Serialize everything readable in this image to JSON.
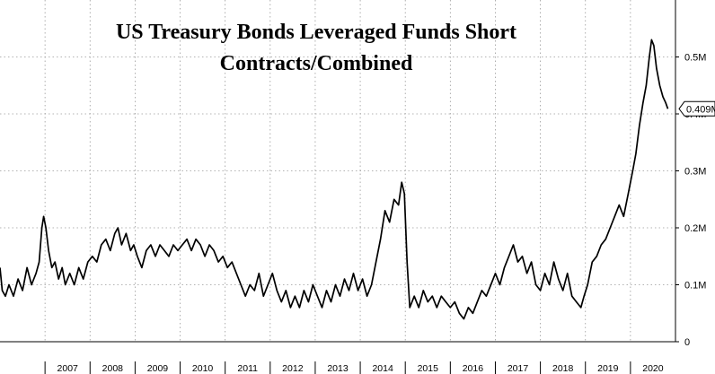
{
  "chart_data": {
    "type": "line",
    "title_lines": [
      "US Treasury Bonds Leveraged Funds Short",
      "Contracts/Combined"
    ],
    "xlabel": "",
    "ylabel": "",
    "x_ticks": [
      "2007",
      "2008",
      "2009",
      "2010",
      "2011",
      "2012",
      "2013",
      "2014",
      "2015",
      "2016",
      "2017",
      "2018",
      "2019",
      "2020"
    ],
    "y_ticks": [
      "0",
      "0.1M",
      "0.2M",
      "0.3M",
      "0.4M",
      "0.5M"
    ],
    "ylim": [
      0,
      0.6
    ],
    "xlim": [
      2006.0,
      2021.0
    ],
    "grid": true,
    "last_value_label": "0.409M",
    "series": [
      {
        "values": [
          [
            2006.0,
            0.13
          ],
          [
            2006.05,
            0.09
          ],
          [
            2006.12,
            0.08
          ],
          [
            2006.2,
            0.1
          ],
          [
            2006.3,
            0.08
          ],
          [
            2006.4,
            0.11
          ],
          [
            2006.5,
            0.09
          ],
          [
            2006.6,
            0.13
          ],
          [
            2006.7,
            0.1
          ],
          [
            2006.8,
            0.12
          ],
          [
            2006.87,
            0.14
          ],
          [
            2006.93,
            0.2
          ],
          [
            2006.97,
            0.22
          ],
          [
            2007.02,
            0.2
          ],
          [
            2007.08,
            0.16
          ],
          [
            2007.15,
            0.13
          ],
          [
            2007.22,
            0.14
          ],
          [
            2007.3,
            0.11
          ],
          [
            2007.38,
            0.13
          ],
          [
            2007.45,
            0.1
          ],
          [
            2007.55,
            0.12
          ],
          [
            2007.65,
            0.1
          ],
          [
            2007.75,
            0.13
          ],
          [
            2007.85,
            0.11
          ],
          [
            2007.95,
            0.14
          ],
          [
            2008.05,
            0.15
          ],
          [
            2008.15,
            0.14
          ],
          [
            2008.25,
            0.17
          ],
          [
            2008.35,
            0.18
          ],
          [
            2008.45,
            0.16
          ],
          [
            2008.55,
            0.19
          ],
          [
            2008.62,
            0.2
          ],
          [
            2008.7,
            0.17
          ],
          [
            2008.8,
            0.19
          ],
          [
            2008.9,
            0.16
          ],
          [
            2008.97,
            0.17
          ],
          [
            2009.05,
            0.15
          ],
          [
            2009.15,
            0.13
          ],
          [
            2009.25,
            0.16
          ],
          [
            2009.35,
            0.17
          ],
          [
            2009.45,
            0.15
          ],
          [
            2009.55,
            0.17
          ],
          [
            2009.65,
            0.16
          ],
          [
            2009.75,
            0.15
          ],
          [
            2009.85,
            0.17
          ],
          [
            2009.95,
            0.16
          ],
          [
            2010.05,
            0.17
          ],
          [
            2010.15,
            0.18
          ],
          [
            2010.25,
            0.16
          ],
          [
            2010.35,
            0.18
          ],
          [
            2010.45,
            0.17
          ],
          [
            2010.55,
            0.15
          ],
          [
            2010.65,
            0.17
          ],
          [
            2010.75,
            0.16
          ],
          [
            2010.85,
            0.14
          ],
          [
            2010.95,
            0.15
          ],
          [
            2011.05,
            0.13
          ],
          [
            2011.15,
            0.14
          ],
          [
            2011.25,
            0.12
          ],
          [
            2011.35,
            0.1
          ],
          [
            2011.45,
            0.08
          ],
          [
            2011.55,
            0.1
          ],
          [
            2011.65,
            0.09
          ],
          [
            2011.75,
            0.12
          ],
          [
            2011.85,
            0.08
          ],
          [
            2011.95,
            0.1
          ],
          [
            2012.05,
            0.12
          ],
          [
            2012.15,
            0.09
          ],
          [
            2012.25,
            0.07
          ],
          [
            2012.35,
            0.09
          ],
          [
            2012.45,
            0.06
          ],
          [
            2012.55,
            0.08
          ],
          [
            2012.65,
            0.06
          ],
          [
            2012.75,
            0.09
          ],
          [
            2012.85,
            0.07
          ],
          [
            2012.95,
            0.1
          ],
          [
            2013.05,
            0.08
          ],
          [
            2013.15,
            0.06
          ],
          [
            2013.25,
            0.09
          ],
          [
            2013.35,
            0.07
          ],
          [
            2013.45,
            0.1
          ],
          [
            2013.55,
            0.08
          ],
          [
            2013.65,
            0.11
          ],
          [
            2013.75,
            0.09
          ],
          [
            2013.85,
            0.12
          ],
          [
            2013.95,
            0.09
          ],
          [
            2014.05,
            0.11
          ],
          [
            2014.15,
            0.08
          ],
          [
            2014.25,
            0.1
          ],
          [
            2014.35,
            0.14
          ],
          [
            2014.45,
            0.18
          ],
          [
            2014.55,
            0.23
          ],
          [
            2014.65,
            0.21
          ],
          [
            2014.75,
            0.25
          ],
          [
            2014.85,
            0.24
          ],
          [
            2014.92,
            0.28
          ],
          [
            2014.98,
            0.26
          ],
          [
            2015.04,
            0.14
          ],
          [
            2015.1,
            0.06
          ],
          [
            2015.2,
            0.08
          ],
          [
            2015.3,
            0.06
          ],
          [
            2015.4,
            0.09
          ],
          [
            2015.5,
            0.07
          ],
          [
            2015.6,
            0.08
          ],
          [
            2015.7,
            0.06
          ],
          [
            2015.8,
            0.08
          ],
          [
            2015.9,
            0.07
          ],
          [
            2016.0,
            0.06
          ],
          [
            2016.1,
            0.07
          ],
          [
            2016.2,
            0.05
          ],
          [
            2016.3,
            0.04
          ],
          [
            2016.4,
            0.06
          ],
          [
            2016.5,
            0.05
          ],
          [
            2016.6,
            0.07
          ],
          [
            2016.7,
            0.09
          ],
          [
            2016.8,
            0.08
          ],
          [
            2016.9,
            0.1
          ],
          [
            2017.0,
            0.12
          ],
          [
            2017.1,
            0.1
          ],
          [
            2017.2,
            0.13
          ],
          [
            2017.3,
            0.15
          ],
          [
            2017.4,
            0.17
          ],
          [
            2017.5,
            0.14
          ],
          [
            2017.6,
            0.15
          ],
          [
            2017.7,
            0.12
          ],
          [
            2017.8,
            0.14
          ],
          [
            2017.9,
            0.1
          ],
          [
            2018.0,
            0.09
          ],
          [
            2018.1,
            0.12
          ],
          [
            2018.2,
            0.1
          ],
          [
            2018.3,
            0.14
          ],
          [
            2018.4,
            0.11
          ],
          [
            2018.5,
            0.09
          ],
          [
            2018.6,
            0.12
          ],
          [
            2018.7,
            0.08
          ],
          [
            2018.8,
            0.07
          ],
          [
            2018.9,
            0.06
          ],
          [
            2018.97,
            0.08
          ],
          [
            2019.05,
            0.1
          ],
          [
            2019.15,
            0.14
          ],
          [
            2019.25,
            0.15
          ],
          [
            2019.35,
            0.17
          ],
          [
            2019.45,
            0.18
          ],
          [
            2019.55,
            0.2
          ],
          [
            2019.65,
            0.22
          ],
          [
            2019.75,
            0.24
          ],
          [
            2019.85,
            0.22
          ],
          [
            2019.95,
            0.26
          ],
          [
            2020.05,
            0.3
          ],
          [
            2020.12,
            0.33
          ],
          [
            2020.2,
            0.38
          ],
          [
            2020.28,
            0.42
          ],
          [
            2020.35,
            0.45
          ],
          [
            2020.42,
            0.5
          ],
          [
            2020.47,
            0.53
          ],
          [
            2020.52,
            0.52
          ],
          [
            2020.58,
            0.48
          ],
          [
            2020.65,
            0.45
          ],
          [
            2020.72,
            0.43
          ],
          [
            2020.78,
            0.42
          ],
          [
            2020.83,
            0.409
          ]
        ]
      }
    ]
  }
}
